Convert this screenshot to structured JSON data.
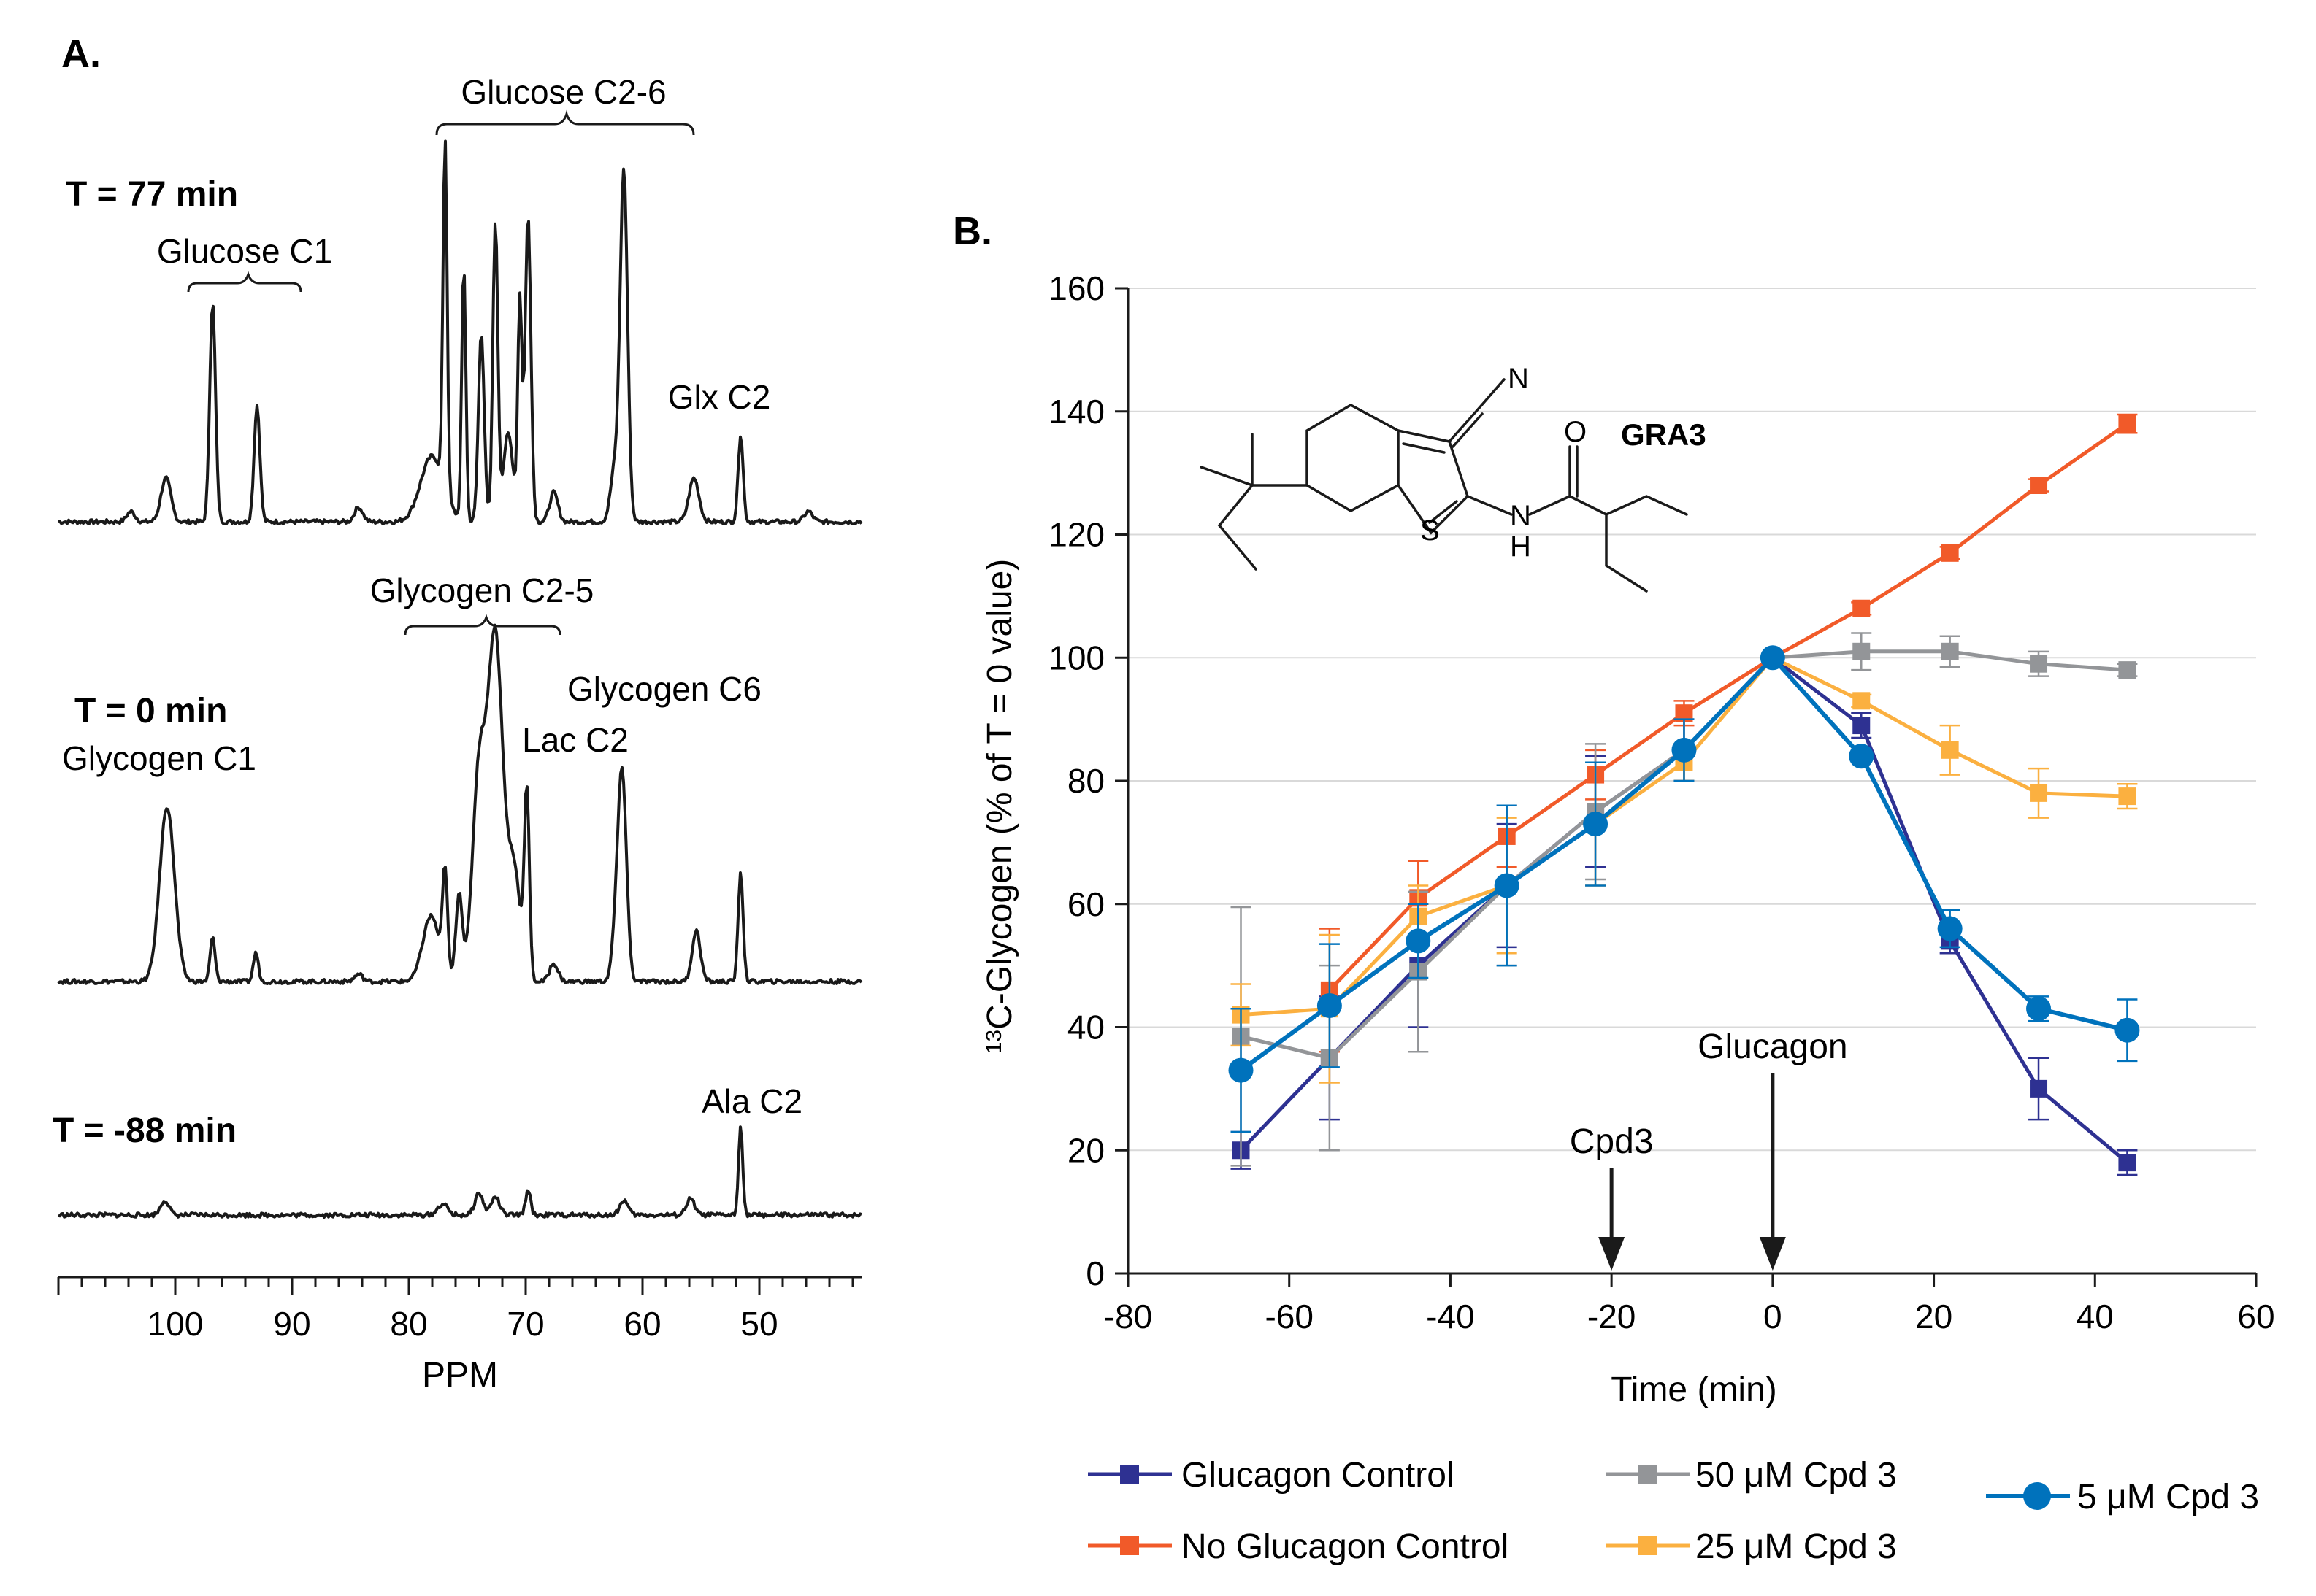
{
  "panel_a": {
    "label": "A.",
    "xlabel": "PPM",
    "x_ticks": [
      "100",
      "90",
      "80",
      "70",
      "60",
      "50"
    ],
    "spectra": [
      {
        "time_label": "T = 77 min",
        "annotations": [
          "Glucose C2-6",
          "Glucose C1",
          "Glx C2"
        ],
        "peaks_ppm": [
          103.8,
          100.8,
          96.8,
          93.0,
          84.3,
          76.9,
          75.3,
          73.8,
          72.6,
          70.5,
          69.8,
          67.6,
          61.6,
          55.6,
          51.6,
          45.8
        ]
      },
      {
        "time_label": "T = 0 min",
        "annotations": [
          "Glycogen C2-5",
          "Glycogen C1",
          "Glycogen C6",
          "Lac C2"
        ],
        "peaks_ppm": [
          100.7,
          96.8,
          93.1,
          78.1,
          76.9,
          75.7,
          74.0,
          72.6,
          69.9,
          61.7,
          55.4,
          51.6
        ]
      },
      {
        "time_label": "T = -88 min",
        "annotations": [
          "Ala C2"
        ],
        "peaks_ppm": [
          100.9,
          77.1,
          74.0,
          72.6,
          69.8,
          61.6,
          55.9,
          51.6
        ]
      }
    ]
  },
  "panel_b": {
    "label": "B.",
    "molecule_label": "GRA3",
    "atom_labels": [
      "N",
      "O",
      "S",
      "N",
      "H"
    ],
    "arrows": [
      {
        "label": "Cpd3",
        "x": -20
      },
      {
        "label": "Glucagon",
        "x": 0
      }
    ]
  },
  "chart_data": {
    "type": "line",
    "title": "",
    "xlabel": "Time (min)",
    "ylabel_sup": "13",
    "ylabel": "C-Glycogen (% of T = 0 value)",
    "xlim": [
      -80,
      60
    ],
    "ylim": [
      0,
      160
    ],
    "x_ticks": [
      -80,
      -60,
      -40,
      -20,
      0,
      20,
      40,
      60
    ],
    "y_ticks": [
      0,
      20,
      40,
      60,
      80,
      100,
      120,
      140,
      160
    ],
    "grid": "horizontal",
    "x": [
      -66,
      -55,
      -44,
      -33,
      -22,
      -11,
      0,
      11,
      22,
      33,
      44
    ],
    "series": [
      {
        "name": "Glucagon Control",
        "color": "#2e3192",
        "marker": "square",
        "values": [
          20,
          35,
          50,
          63,
          75,
          85,
          100,
          89,
          54,
          30,
          18
        ],
        "errors": [
          3,
          10,
          10,
          10,
          9,
          5,
          0,
          2,
          2,
          5,
          2
        ]
      },
      {
        "name": "No Glucagon Control",
        "color": "#f15a29",
        "marker": "square",
        "values": [
          null,
          46,
          61,
          71,
          81,
          91,
          100,
          108,
          117,
          128,
          138
        ],
        "errors": [
          0,
          10,
          6,
          5,
          4,
          2,
          0,
          1,
          1,
          1,
          1.5
        ]
      },
      {
        "name": "50 μM Cpd 3",
        "color": "#939598",
        "marker": "square",
        "values": [
          38.5,
          35,
          49,
          63,
          75,
          85,
          100,
          101,
          101,
          99,
          98
        ],
        "errors": [
          21,
          15,
          13,
          13,
          11,
          5,
          0,
          3,
          2.5,
          2,
          1
        ]
      },
      {
        "name": "25 μM Cpd 3",
        "color": "#fbb040",
        "marker": "square",
        "values": [
          42,
          43,
          58,
          63,
          73,
          83,
          100,
          93,
          85,
          78,
          77.5
        ],
        "errors": [
          5,
          12,
          5,
          11,
          10,
          3,
          0,
          1,
          4,
          4,
          2
        ]
      },
      {
        "name": "5 μM Cpd 3",
        "color": "#0072bc",
        "marker": "circle",
        "values": [
          33,
          43.5,
          54,
          63,
          73,
          85,
          100,
          84,
          56,
          43,
          39.5
        ],
        "errors": [
          10,
          10,
          6,
          13,
          10,
          5,
          0,
          1,
          3,
          2,
          5
        ]
      }
    ]
  }
}
